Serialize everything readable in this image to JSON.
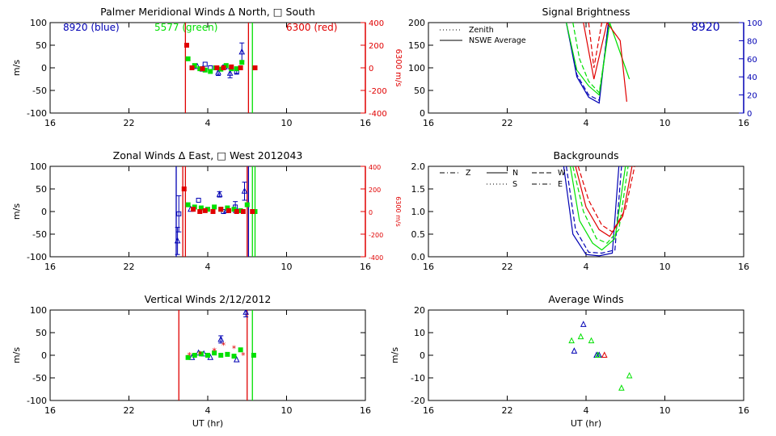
{
  "colors": {
    "axis": "#000000",
    "blue": "#0000b4",
    "green": "#00e000",
    "red": "#e00000"
  },
  "chart_data": [
    {
      "type": "scatter",
      "title": "Palmer Meridional Winds Δ North, □ South",
      "ylabel": "m/s",
      "y2label": "6300 m/s",
      "xticks": [
        "16",
        "22",
        "4",
        "10",
        "16"
      ],
      "yticks": [
        "100",
        "50",
        "0",
        "-50",
        "-100"
      ],
      "y2ticks": [
        "400",
        "200",
        "0",
        "-200",
        "-400"
      ],
      "xlim": [
        16,
        40
      ],
      "ylim": [
        -100,
        100
      ],
      "annotations": [
        "8920 (blue)",
        "5577 (green)",
        "6300 (red)"
      ],
      "vlines": [
        {
          "x": 26.3,
          "color": "red"
        },
        {
          "x": 31.1,
          "color": "red"
        },
        {
          "x": 31.4,
          "color": "green"
        }
      ],
      "series": [
        {
          "color": "blue",
          "marker": "triangle",
          "x": [
            27.2,
            27.6,
            28.8,
            29.7,
            30.6
          ],
          "y": [
            3,
            -3,
            -10,
            -12,
            35
          ],
          "err": [
            0,
            0,
            7,
            10,
            20
          ]
        },
        {
          "color": "blue",
          "marker": "square",
          "x": [
            27.8,
            28.2,
            29.3,
            30.2
          ],
          "y": [
            8,
            0,
            2,
            -8
          ],
          "err": [
            0,
            0,
            0,
            6
          ]
        },
        {
          "color": "green",
          "marker": "square",
          "x": [
            26.5,
            27.0,
            27.4,
            27.8,
            28.2,
            28.6,
            29.0,
            29.4,
            29.8,
            30.2,
            30.6
          ],
          "y": [
            20,
            5,
            -2,
            -5,
            -8,
            0,
            -3,
            5,
            -2,
            -2,
            12
          ]
        },
        {
          "color": "red",
          "marker": "square",
          "x": [
            26.4,
            26.8,
            27.6,
            28.7,
            29.2,
            29.8,
            30.5,
            31.6
          ],
          "y": [
            50,
            0,
            -2,
            0,
            0,
            2,
            0,
            0
          ]
        }
      ]
    },
    {
      "type": "line",
      "title": "Signal Brightness",
      "xticks": [
        "16",
        "22",
        "4",
        "10",
        "16"
      ],
      "yticks": [
        "200",
        "150",
        "100",
        "50",
        "0"
      ],
      "y2ticks": [
        "100",
        "80",
        "60",
        "40",
        "20",
        "0"
      ],
      "xlim": [
        16,
        40
      ],
      "ylim": [
        0,
        200
      ],
      "legend": [
        "Zenith",
        "NSWE Average"
      ],
      "legend_position": "top-left",
      "annotation": "8920",
      "series": [
        {
          "color": "blue",
          "style": "solid",
          "x": [
            26.5,
            27.3,
            28.2,
            29.0,
            29.7
          ],
          "y": [
            200,
            80,
            35,
            22,
            200
          ]
        },
        {
          "color": "blue",
          "style": "dashed",
          "x": [
            26.5,
            27.3,
            28.2,
            29.0,
            29.7
          ],
          "y": [
            200,
            85,
            40,
            28,
            200
          ]
        },
        {
          "color": "green",
          "style": "solid",
          "x": [
            26.5,
            27.3,
            28.2,
            29.0,
            29.8,
            31.3
          ],
          "y": [
            200,
            95,
            60,
            40,
            200,
            75
          ]
        },
        {
          "color": "green",
          "style": "dashed",
          "x": [
            27.0,
            27.5,
            28.2,
            29.0,
            29.8
          ],
          "y": [
            200,
            120,
            70,
            45,
            200
          ]
        },
        {
          "color": "red",
          "style": "solid",
          "x": [
            27.8,
            28.6,
            29.6,
            30.6,
            31.1
          ],
          "y": [
            200,
            75,
            200,
            160,
            25
          ]
        },
        {
          "color": "red",
          "style": "dashed",
          "x": [
            28.2,
            28.6,
            29.2,
            29.6
          ],
          "y": [
            200,
            100,
            200,
            200
          ]
        }
      ]
    },
    {
      "type": "scatter",
      "title": "Zonal Winds Δ East, □ West 2012043",
      "ylabel": "m/s",
      "y2label": "6300 m/s",
      "xticks": [
        "16",
        "22",
        "4",
        "10",
        "16"
      ],
      "yticks": [
        "100",
        "50",
        "0",
        "-50",
        "-100"
      ],
      "y2ticks": [
        "400",
        "200",
        "0",
        "-200",
        "-400"
      ],
      "xlim": [
        16,
        40
      ],
      "ylim": [
        -100,
        100
      ],
      "vlines": [
        {
          "x": 25.6,
          "color": "blue"
        },
        {
          "x": 26.1,
          "color": "red"
        },
        {
          "x": 26.3,
          "color": "red"
        },
        {
          "x": 31.0,
          "color": "red"
        },
        {
          "x": 31.1,
          "color": "blue"
        },
        {
          "x": 31.4,
          "color": "green"
        },
        {
          "x": 31.6,
          "color": "green"
        }
      ],
      "series": [
        {
          "color": "blue",
          "marker": "triangle",
          "x": [
            25.7,
            26.7,
            28.9,
            29.4,
            30.8
          ],
          "y": [
            -65,
            5,
            38,
            2,
            45
          ],
          "err": [
            30,
            0,
            6,
            0,
            20
          ]
        },
        {
          "color": "blue",
          "marker": "square",
          "x": [
            25.8,
            27.3,
            29.2,
            30.1
          ],
          "y": [
            -5,
            25,
            0,
            10
          ],
          "err": [
            40,
            0,
            0,
            12
          ]
        },
        {
          "color": "green",
          "marker": "square",
          "x": [
            26.5,
            27.0,
            27.5,
            28.0,
            28.5,
            29.0,
            29.5,
            30.0,
            30.5,
            31.0,
            31.6
          ],
          "y": [
            15,
            10,
            8,
            5,
            10,
            5,
            8,
            5,
            2,
            15,
            0
          ]
        },
        {
          "color": "red",
          "marker": "square",
          "x": [
            26.2,
            26.9,
            27.4,
            27.8,
            28.4,
            29.0,
            29.6,
            30.2,
            30.7,
            31.4
          ],
          "y": [
            50,
            5,
            0,
            2,
            0,
            5,
            2,
            0,
            0,
            0
          ]
        }
      ]
    },
    {
      "type": "line",
      "title": "Backgrounds",
      "xticks": [
        "16",
        "22",
        "4",
        "10",
        "16"
      ],
      "yticks": [
        "2.0",
        "1.5",
        "1.0",
        "0.5",
        "0.0"
      ],
      "xlim": [
        16,
        40
      ],
      "ylim": [
        0,
        2
      ],
      "legend": [
        "Z",
        "N",
        "W",
        "S",
        "E"
      ],
      "legend_position": "top-left",
      "series": [
        {
          "color": "blue",
          "style": "solid",
          "x": [
            26.3,
            27.0,
            28.0,
            29.0,
            30.0,
            30.5
          ],
          "y": [
            2.0,
            0.5,
            0.05,
            0.02,
            0.08,
            2.0
          ]
        },
        {
          "color": "blue",
          "style": "dashed",
          "x": [
            26.5,
            27.2,
            28.2,
            29.2,
            30.2,
            30.7
          ],
          "y": [
            2.0,
            0.6,
            0.1,
            0.08,
            0.15,
            2.0
          ]
        },
        {
          "color": "green",
          "style": "solid",
          "x": [
            26.8,
            27.5,
            28.5,
            29.2,
            30.2,
            31.0
          ],
          "y": [
            2.0,
            0.8,
            0.3,
            0.15,
            0.4,
            2.0
          ]
        },
        {
          "color": "green",
          "style": "dashed",
          "x": [
            27.0,
            27.8,
            28.8,
            29.6,
            30.5,
            31.2
          ],
          "y": [
            2.0,
            1.0,
            0.4,
            0.3,
            0.6,
            2.0
          ]
        },
        {
          "color": "red",
          "style": "solid",
          "x": [
            27.2,
            28.0,
            29.0,
            29.8,
            30.8,
            31.5
          ],
          "y": [
            2.0,
            1.1,
            0.6,
            0.45,
            0.9,
            2.0
          ]
        },
        {
          "color": "red",
          "style": "dashed",
          "x": [
            27.4,
            28.2,
            29.2,
            30.0,
            31.0,
            31.7
          ],
          "y": [
            2.0,
            1.25,
            0.7,
            0.55,
            1.05,
            2.0
          ]
        }
      ]
    },
    {
      "type": "scatter",
      "title": "Vertical Winds 2/12/2012",
      "xlabel": "UT (hr)",
      "ylabel": "m/s",
      "xticks": [
        "16",
        "22",
        "4",
        "10",
        "16"
      ],
      "yticks": [
        "100",
        "50",
        "0",
        "-50",
        "-100"
      ],
      "xlim": [
        16,
        40
      ],
      "ylim": [
        -100,
        100
      ],
      "vlines": [
        {
          "x": 25.8,
          "color": "red"
        },
        {
          "x": 31.0,
          "color": "red"
        },
        {
          "x": 31.4,
          "color": "green"
        }
      ],
      "series": [
        {
          "color": "blue",
          "marker": "triangle",
          "x": [
            26.8,
            27.3,
            27.7,
            28.2,
            29.0,
            30.2,
            30.9
          ],
          "y": [
            -5,
            5,
            3,
            -5,
            35,
            -10,
            95
          ],
          "err": [
            0,
            0,
            0,
            0,
            8,
            0,
            10
          ]
        },
        {
          "color": "green",
          "marker": "square",
          "x": [
            26.5,
            27.0,
            27.5,
            28.0,
            28.5,
            29.0,
            29.5,
            30.0,
            30.5,
            31.5
          ],
          "y": [
            -5,
            0,
            3,
            0,
            5,
            0,
            2,
            -2,
            12,
            0
          ]
        },
        {
          "color": "red",
          "marker": "star",
          "x": [
            26.6,
            27.4,
            28.5,
            29.2,
            30.0,
            30.7
          ],
          "y": [
            0,
            3,
            10,
            22,
            15,
            0
          ]
        }
      ]
    },
    {
      "type": "scatter",
      "title": "Average Winds",
      "xlabel": "UT (hr)",
      "ylabel": "m/s",
      "xticks": [
        "16",
        "22",
        "4",
        "10",
        "16"
      ],
      "yticks": [
        "20",
        "10",
        "0",
        "-10",
        "-20"
      ],
      "xlim": [
        16,
        40
      ],
      "ylim": [
        -22,
        22
      ],
      "series": [
        {
          "color": "blue",
          "marker": "triangle",
          "x": [
            27.1,
            27.8,
            28.8,
            29.0
          ],
          "y": [
            2,
            15,
            0,
            0
          ]
        },
        {
          "color": "green",
          "marker": "triangle",
          "x": [
            26.9,
            27.6,
            28.4,
            28.9,
            30.7,
            31.3
          ],
          "y": [
            7,
            9,
            7,
            0,
            -16,
            -10
          ]
        },
        {
          "color": "red",
          "marker": "triangle",
          "x": [
            29.4
          ],
          "y": [
            0
          ]
        }
      ]
    }
  ]
}
